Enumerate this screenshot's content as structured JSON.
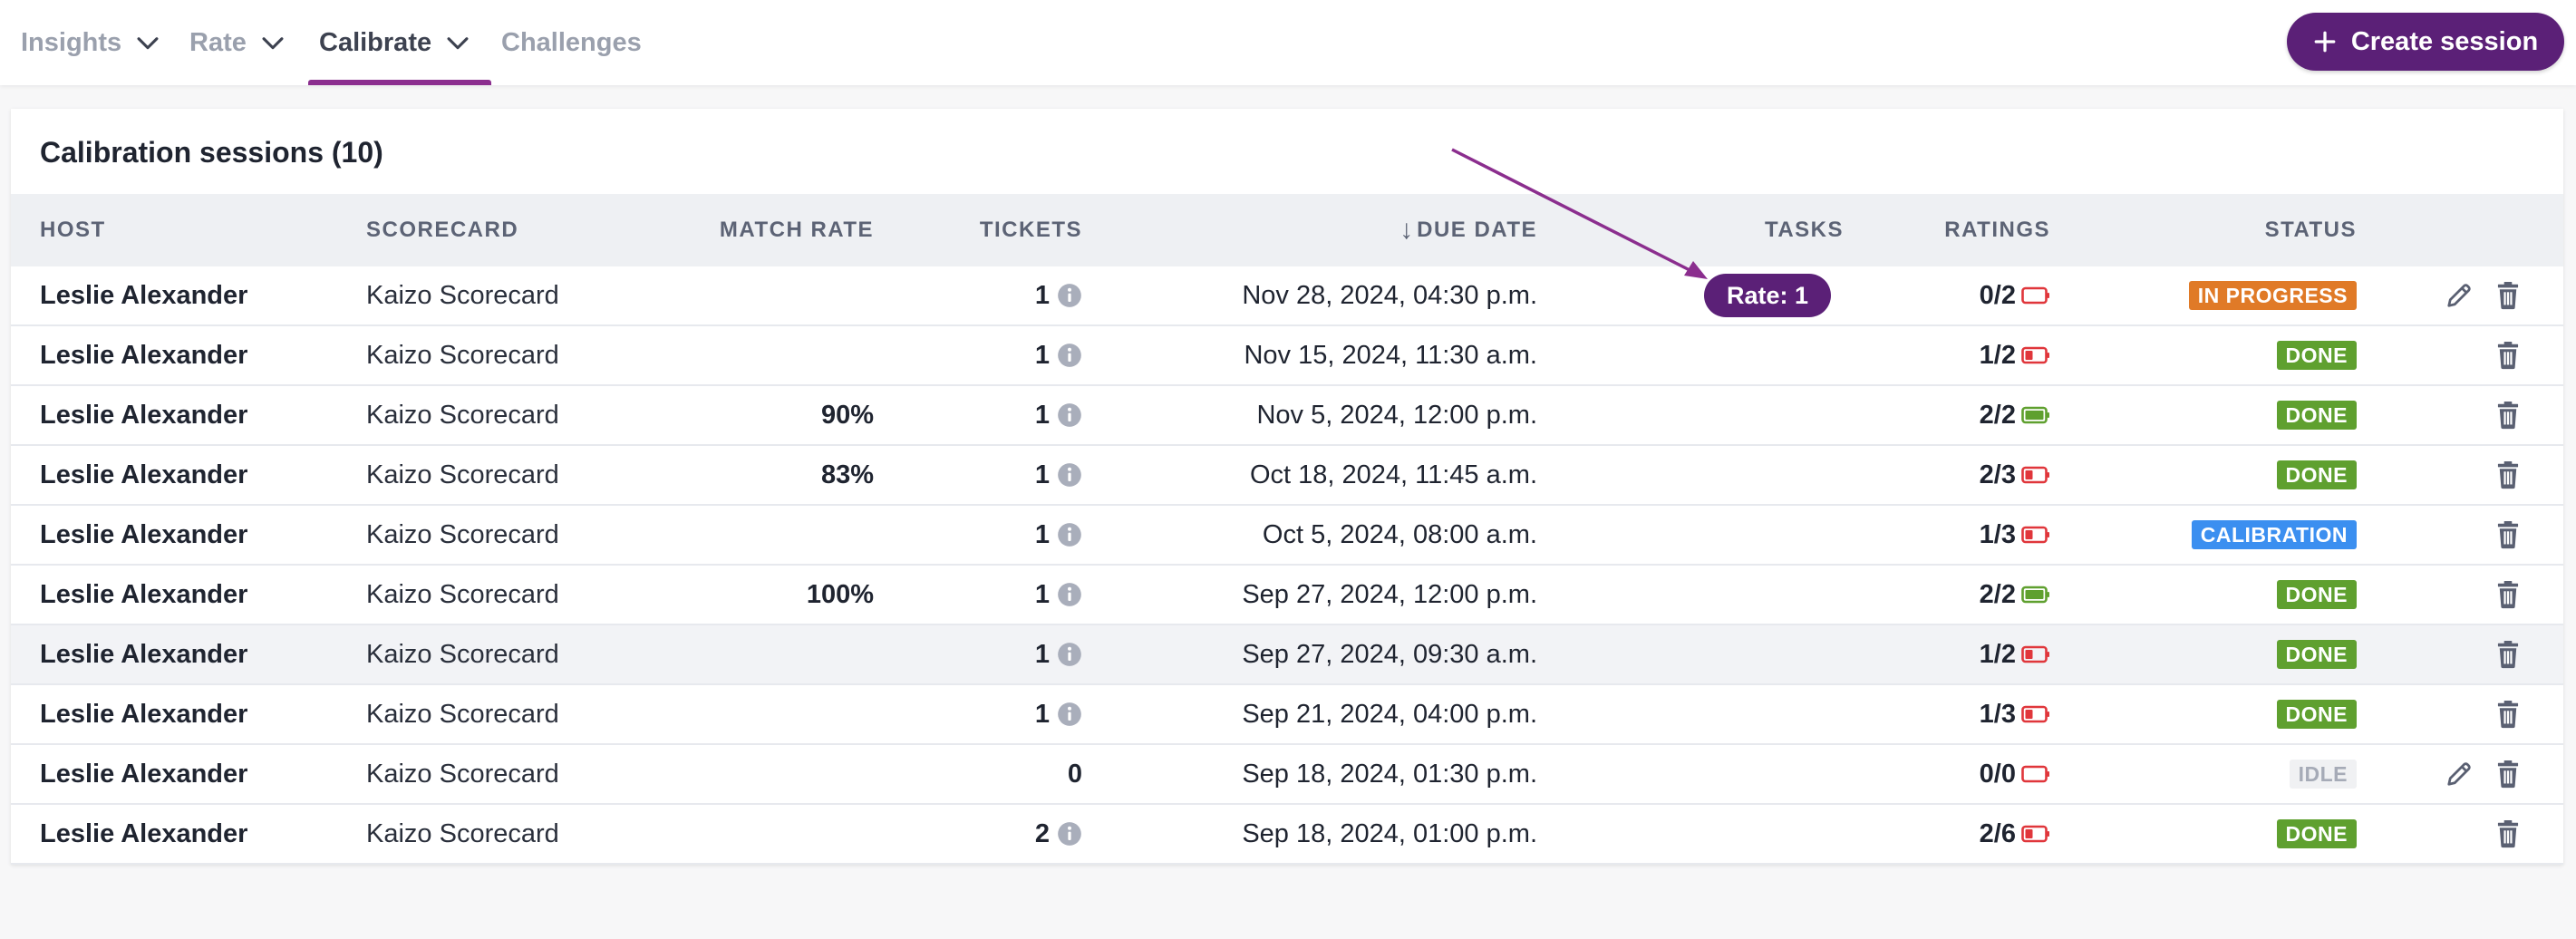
{
  "nav": {
    "tabs": [
      {
        "label": "Insights",
        "has_dropdown": true
      },
      {
        "label": "Rate",
        "has_dropdown": true
      },
      {
        "label": "Calibrate",
        "has_dropdown": true,
        "active": true
      },
      {
        "label": "Challenges",
        "has_dropdown": false
      }
    ]
  },
  "header": {
    "create_label": "Create session",
    "create_icon": "plus-icon"
  },
  "card": {
    "title": "Calibration sessions (10)"
  },
  "table": {
    "columns": {
      "host": "HOST",
      "scorecard": "SCORECARD",
      "match_rate": "MATCH RATE",
      "tickets": "TICKETS",
      "due_date": "DUE DATE",
      "tasks": "TASKS",
      "ratings": "RATINGS",
      "status": "STATUS"
    },
    "sort": {
      "column": "due_date",
      "direction": "descending"
    },
    "rows": [
      {
        "host": "Leslie Alexander",
        "scorecard": "Kaizo Scorecard",
        "match_rate": "",
        "tickets": "1",
        "due": "Nov 28, 2024, 04:30 p.m.",
        "tasks": "Rate: 1",
        "ratings": "0/2",
        "status": "IN PROGRESS",
        "status_kind": "progress",
        "editable": true
      },
      {
        "host": "Leslie Alexander",
        "scorecard": "Kaizo Scorecard",
        "match_rate": "",
        "tickets": "1",
        "due": "Nov 15, 2024, 11:30 a.m.",
        "tasks": "",
        "ratings": "1/2",
        "status": "DONE",
        "status_kind": "done",
        "editable": false
      },
      {
        "host": "Leslie Alexander",
        "scorecard": "Kaizo Scorecard",
        "match_rate": "90%",
        "tickets": "1",
        "due": "Nov 5, 2024, 12:00 p.m.",
        "tasks": "",
        "ratings": "2/2",
        "status": "DONE",
        "status_kind": "done",
        "editable": false
      },
      {
        "host": "Leslie Alexander",
        "scorecard": "Kaizo Scorecard",
        "match_rate": "83%",
        "tickets": "1",
        "due": "Oct 18, 2024, 11:45 a.m.",
        "tasks": "",
        "ratings": "2/3",
        "status": "DONE",
        "status_kind": "done",
        "editable": false
      },
      {
        "host": "Leslie Alexander",
        "scorecard": "Kaizo Scorecard",
        "match_rate": "",
        "tickets": "1",
        "due": "Oct 5, 2024, 08:00 a.m.",
        "tasks": "",
        "ratings": "1/3",
        "status": "CALIBRATION",
        "status_kind": "calib",
        "editable": false
      },
      {
        "host": "Leslie Alexander",
        "scorecard": "Kaizo Scorecard",
        "match_rate": "100%",
        "tickets": "1",
        "due": "Sep 27, 2024, 12:00 p.m.",
        "tasks": "",
        "ratings": "2/2",
        "status": "DONE",
        "status_kind": "done",
        "editable": false
      },
      {
        "host": "Leslie Alexander",
        "scorecard": "Kaizo Scorecard",
        "match_rate": "",
        "tickets": "1",
        "due": "Sep 27, 2024, 09:30 a.m.",
        "tasks": "",
        "ratings": "1/2",
        "status": "DONE",
        "status_kind": "done",
        "editable": false
      },
      {
        "host": "Leslie Alexander",
        "scorecard": "Kaizo Scorecard",
        "match_rate": "",
        "tickets": "1",
        "due": "Sep 21, 2024, 04:00 p.m.",
        "tasks": "",
        "ratings": "1/3",
        "status": "DONE",
        "status_kind": "done",
        "editable": false
      },
      {
        "host": "Leslie Alexander",
        "scorecard": "Kaizo Scorecard",
        "match_rate": "",
        "tickets": "0",
        "due": "Sep 18, 2024, 01:30 p.m.",
        "tasks": "",
        "ratings": "0/0",
        "status": "IDLE",
        "status_kind": "idle",
        "editable": true
      },
      {
        "host": "Leslie Alexander",
        "scorecard": "Kaizo Scorecard",
        "match_rate": "",
        "tickets": "2",
        "due": "Sep 18, 2024, 01:00 p.m.",
        "tasks": "",
        "ratings": "2/6",
        "status": "DONE",
        "status_kind": "done",
        "editable": false
      }
    ]
  },
  "colors": {
    "accent": "#5b2077",
    "tab_underline": "#8b2e8e",
    "progress": "#e07a27",
    "done": "#5fa02f",
    "calibration": "#3b8ff0",
    "battery_low": "#e0363b",
    "battery_full": "#5fa02f"
  }
}
